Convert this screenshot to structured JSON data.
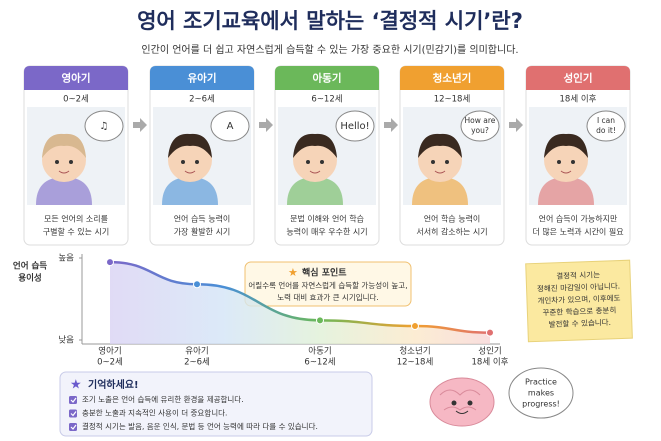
{
  "header": {
    "title": "영어 조기교육에서 말하는 ‘결정적 시기’란?",
    "subtitle": "인간이 언어를 더 쉽고 자연스럽게 습득할 수 있는 가장 중요한 시기(민감기)를 의미합니다."
  },
  "stages": [
    {
      "name": "영아기",
      "age": "0~2세",
      "bubble": [
        "♫"
      ],
      "description": [
        "모든 언어의 소리를",
        "구별할 수 있는 시기"
      ],
      "color": "#7b68c8"
    },
    {
      "name": "유아기",
      "age": "2~6세",
      "bubble": [
        "A"
      ],
      "description": [
        "언어 습득 능력이",
        "가장 활발한 시기"
      ],
      "color": "#4a8fd6"
    },
    {
      "name": "아동기",
      "age": "6~12세",
      "bubble": [
        "Hello!"
      ],
      "description": [
        "문법 이해와 언어 학습",
        "능력이 매우 우수한 시기"
      ],
      "color": "#6bb85a"
    },
    {
      "name": "청소년기",
      "age": "12~18세",
      "bubble": [
        "How are",
        "you?"
      ],
      "description": [
        "언어 학습 능력이",
        "서서히 감소하는 시기"
      ],
      "color": "#f0a030"
    },
    {
      "name": "성인기",
      "age": "18세 이후",
      "bubble": [
        "I can",
        "do it!"
      ],
      "description": [
        "언어 습득이 가능하지만",
        "더 많은 노력과 시간이 필요"
      ],
      "color": "#e07070"
    }
  ],
  "chart_data": {
    "type": "line",
    "y_label": [
      "언어 습득",
      "용이성"
    ],
    "categories": [
      "영아기",
      "유아기",
      "아동기",
      "청소년기",
      "성인기"
    ],
    "category_ages": [
      "0~2세",
      "2~6세",
      "6~12세",
      "12~18세",
      "18세 이후"
    ],
    "values": [
      95,
      68,
      24,
      17,
      9
    ],
    "colors": [
      "#7b68c8",
      "#4a8fd6",
      "#6bb85a",
      "#f0a030",
      "#e07070"
    ],
    "ylim": [
      0,
      100
    ],
    "yticks": [
      {
        "value": 0,
        "label": "낮음"
      },
      {
        "value": 100,
        "label": "높음"
      }
    ]
  },
  "key_point": {
    "title": "핵심 포인트",
    "lines": [
      "어릴수록 언어를 자연스럽게 습득할 가능성이 높고,",
      "노력 대비 효과가 큰 시기입니다."
    ]
  },
  "note": {
    "lines": [
      "결정적 시기는",
      "정해진 마감일이 아닙니다.",
      "개인차가 있으며, 이후에도",
      "꾸준한 학습으로 충분히",
      "발전할 수 있습니다."
    ]
  },
  "remember": {
    "title": "기억하세요!",
    "items": [
      "조기 노출은 언어 습득에 유리한 환경을 제공합니다.",
      "충분한 노출과 지속적인 사용이 더 중요합니다.",
      "결정적 시기는 발음, 음운 인식, 문법 등 언어 능력에 따라 다를 수 있습니다."
    ]
  },
  "brain": {
    "bubble": [
      "Practice",
      "makes",
      "progress!"
    ]
  }
}
